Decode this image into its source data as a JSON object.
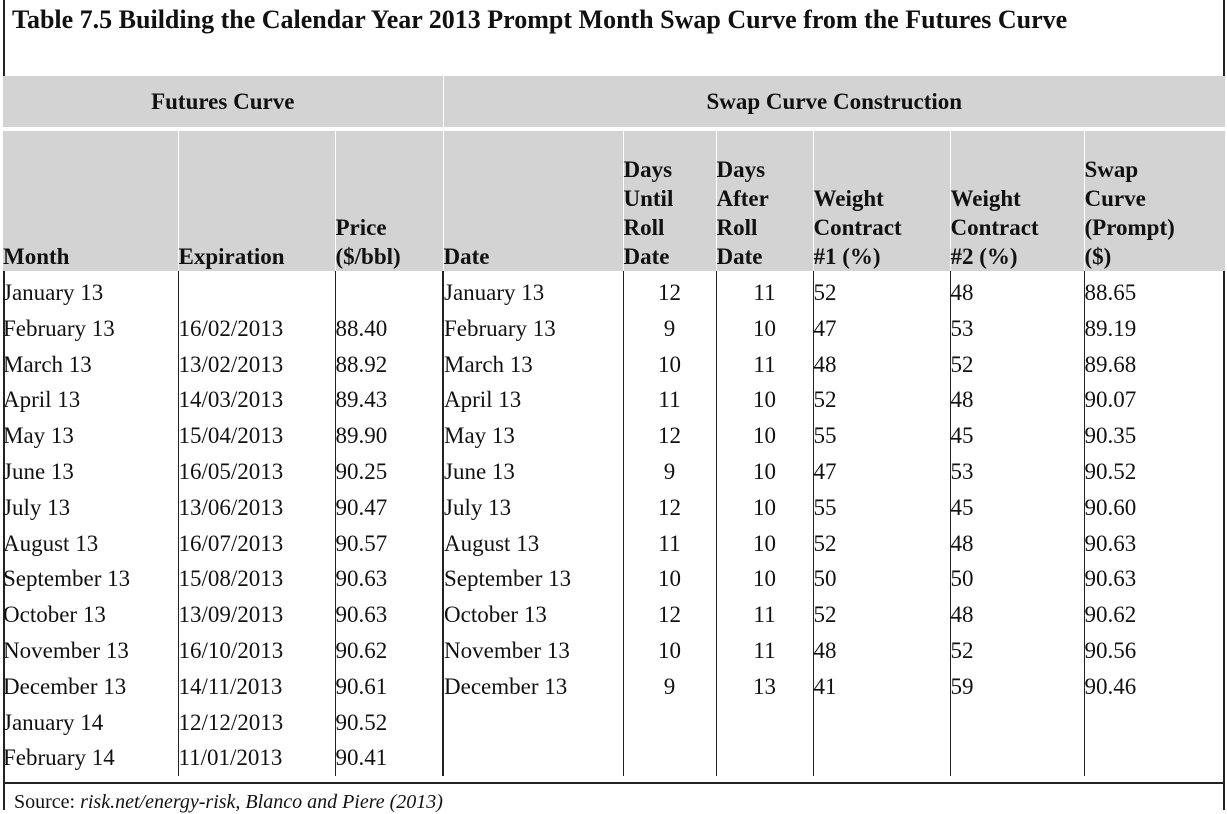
{
  "title": "Table 7.5  Building the Calendar Year 2013 Prompt Month Swap Curve from the Futures Curve",
  "groups": {
    "futures": "Futures Curve",
    "swap": "Swap Curve Construction"
  },
  "headers": {
    "month": "Month",
    "expiration": "Expiration",
    "price": [
      "Price",
      "($/bbl)"
    ],
    "date": "Date",
    "days_until": [
      "Days",
      "Until",
      "Roll",
      "Date"
    ],
    "days_after": [
      "Days",
      "After",
      "Roll",
      "Date"
    ],
    "weight1": [
      "Weight",
      "Contract",
      "#1 (%)"
    ],
    "weight2": [
      "Weight",
      "Contract",
      "#2 (%)"
    ],
    "swap": [
      "Swap",
      "Curve",
      "(Prompt)",
      "($)"
    ]
  },
  "rows": [
    [
      "January 13",
      "",
      "",
      "January 13",
      "12",
      "11",
      "52",
      "48",
      "88.65"
    ],
    [
      "February 13",
      "16/02/2013",
      "88.40",
      "February 13",
      "9",
      "10",
      "47",
      "53",
      "89.19"
    ],
    [
      "March 13",
      "13/02/2013",
      "88.92",
      "March 13",
      "10",
      "11",
      "48",
      "52",
      "89.68"
    ],
    [
      "April 13",
      "14/03/2013",
      "89.43",
      "April 13",
      "11",
      "10",
      "52",
      "48",
      "90.07"
    ],
    [
      "May 13",
      "15/04/2013",
      "89.90",
      "May 13",
      "12",
      "10",
      "55",
      "45",
      "90.35"
    ],
    [
      "June 13",
      "16/05/2013",
      "90.25",
      "June 13",
      "9",
      "10",
      "47",
      "53",
      "90.52"
    ],
    [
      "July 13",
      "13/06/2013",
      "90.47",
      "July 13",
      "12",
      "10",
      "55",
      "45",
      "90.60"
    ],
    [
      "August 13",
      "16/07/2013",
      "90.57",
      "August 13",
      "11",
      "10",
      "52",
      "48",
      "90.63"
    ],
    [
      "September 13",
      "15/08/2013",
      "90.63",
      "September 13",
      "10",
      "10",
      "50",
      "50",
      "90.63"
    ],
    [
      "October 13",
      "13/09/2013",
      "90.63",
      "October 13",
      "12",
      "11",
      "52",
      "48",
      "90.62"
    ],
    [
      "November 13",
      "16/10/2013",
      "90.62",
      "November 13",
      "10",
      "11",
      "48",
      "52",
      "90.56"
    ],
    [
      "December 13",
      "14/11/2013",
      "90.61",
      "December 13",
      "9",
      "13",
      "41",
      "59",
      "90.46"
    ],
    [
      "January 14",
      "12/12/2013",
      "90.52",
      "",
      "",
      "",
      "",
      "",
      ""
    ],
    [
      "February 14",
      "11/01/2013",
      "90.41",
      "",
      "",
      "",
      "",
      "",
      ""
    ]
  ],
  "source": {
    "prefix": "Source: ",
    "text": "risk.net/energy-risk, Blanco and Piere (2013)"
  }
}
